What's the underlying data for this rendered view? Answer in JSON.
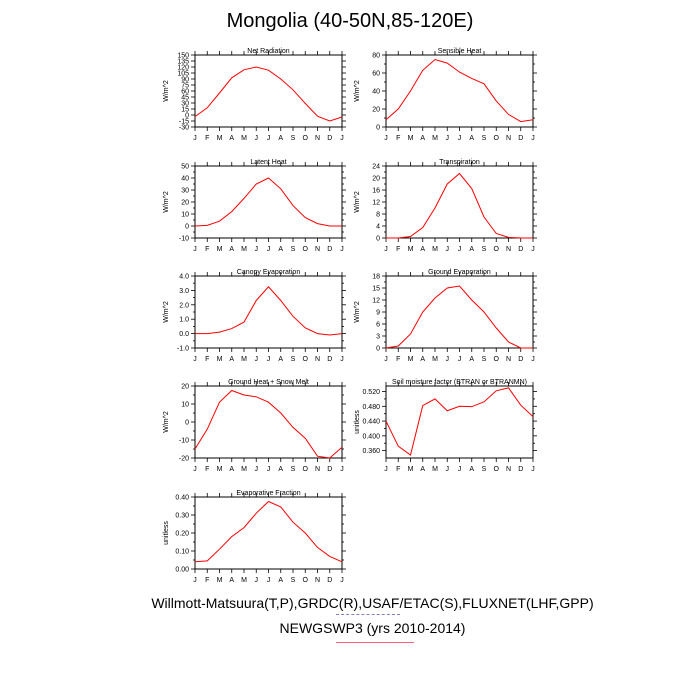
{
  "figure": {
    "title": "Mongolia (40-50N,85-120E)",
    "footer_line1": "Willmott-Matsuura(T,P),GRDC(R),USAF/ETAC(S),FLUXNET(LHF,GPP)",
    "footer_line2": "NEWGSWP3 (yrs 2010-2014)",
    "line_color": "#ff0000",
    "legend_dash_color": "#8080c0",
    "legend_line_color": "#ff6080"
  },
  "chart_data": [
    {
      "type": "line",
      "title": "Net Radiation",
      "ylabel": "W/m^2",
      "xlabel": "",
      "categories": [
        "J",
        "F",
        "M",
        "A",
        "M",
        "J",
        "J",
        "A",
        "S",
        "O",
        "N",
        "D",
        "J"
      ],
      "values": [
        -4,
        18,
        55,
        93,
        113,
        120,
        112,
        90,
        63,
        29,
        -3,
        -15,
        -5
      ],
      "ylim": [
        -30,
        150
      ],
      "yticks": [
        -30,
        -15,
        0,
        15,
        30,
        45,
        60,
        75,
        90,
        105,
        120,
        135,
        150
      ],
      "ytick_labels": [
        "-30",
        "-15",
        "0",
        "15",
        "30",
        "45",
        "60",
        "75",
        "90",
        "105",
        "120",
        "135",
        "150"
      ]
    },
    {
      "type": "line",
      "title": "Sensible Heat",
      "ylabel": "W/m^2",
      "xlabel": "",
      "categories": [
        "J",
        "F",
        "M",
        "A",
        "M",
        "J",
        "J",
        "A",
        "S",
        "O",
        "N",
        "D",
        "J"
      ],
      "values": [
        8,
        20,
        40,
        63,
        75,
        71,
        61,
        54,
        48,
        29,
        14,
        6,
        8
      ],
      "ylim": [
        0,
        80
      ],
      "yticks": [
        0,
        10,
        20,
        30,
        40,
        50,
        60,
        70,
        80
      ],
      "ytick_labels": [
        "0",
        "",
        "20",
        "",
        "40",
        "",
        "60",
        "",
        "80"
      ]
    },
    {
      "type": "line",
      "title": "Latent Heat",
      "ylabel": "W/m^2",
      "xlabel": "",
      "categories": [
        "J",
        "F",
        "M",
        "A",
        "M",
        "J",
        "J",
        "A",
        "S",
        "O",
        "N",
        "D",
        "J"
      ],
      "values": [
        0,
        0.5,
        4,
        12,
        23,
        35,
        40,
        31,
        17,
        7,
        2,
        0,
        0
      ],
      "ylim": [
        -10,
        50
      ],
      "yticks": [
        -10,
        -5,
        0,
        5,
        10,
        15,
        20,
        25,
        30,
        35,
        40,
        45,
        50
      ],
      "ytick_labels": [
        "-10",
        "",
        "0",
        "",
        "10",
        "",
        "20",
        "",
        "30",
        "",
        "40",
        "",
        "50"
      ]
    },
    {
      "type": "line",
      "title": "Transpiration",
      "ylabel": "W/m^2",
      "xlabel": "",
      "categories": [
        "J",
        "F",
        "M",
        "A",
        "M",
        "J",
        "J",
        "A",
        "S",
        "O",
        "N",
        "D",
        "J"
      ],
      "values": [
        0,
        0,
        0.5,
        3.5,
        10,
        18,
        21.5,
        16.5,
        7,
        1.5,
        0.2,
        0,
        0
      ],
      "ylim": [
        0,
        24
      ],
      "yticks": [
        0,
        2,
        4,
        6,
        8,
        10,
        12,
        14,
        16,
        18,
        20,
        22,
        24
      ],
      "ytick_labels": [
        "0",
        "",
        "4",
        "",
        "8",
        "",
        "12",
        "",
        "16",
        "",
        "20",
        "",
        "24"
      ]
    },
    {
      "type": "line",
      "title": "Canopy Evaporation",
      "ylabel": "W/m^2",
      "xlabel": "",
      "categories": [
        "J",
        "F",
        "M",
        "A",
        "M",
        "J",
        "J",
        "A",
        "S",
        "O",
        "N",
        "D",
        "J"
      ],
      "values": [
        0,
        0,
        0.1,
        0.35,
        0.8,
        2.3,
        3.25,
        2.3,
        1.2,
        0.4,
        0,
        -0.1,
        0
      ],
      "ylim": [
        -1.0,
        4.0
      ],
      "yticks": [
        -1.0,
        -0.5,
        0.0,
        0.5,
        1.0,
        1.5,
        2.0,
        2.5,
        3.0,
        3.5,
        4.0
      ],
      "ytick_labels": [
        "-1.0",
        "",
        "0.0",
        "",
        "1.0",
        "",
        "2.0",
        "",
        "3.0",
        "",
        "4.0"
      ]
    },
    {
      "type": "line",
      "title": "Ground Evaporation",
      "ylabel": "W/m^2",
      "xlabel": "",
      "categories": [
        "J",
        "F",
        "M",
        "A",
        "M",
        "J",
        "J",
        "A",
        "S",
        "O",
        "N",
        "D",
        "J"
      ],
      "values": [
        0,
        0.5,
        3.5,
        9,
        12.5,
        15,
        15.5,
        12,
        9,
        5,
        1.5,
        0,
        0
      ],
      "ylim": [
        0,
        18
      ],
      "yticks": [
        0,
        1.5,
        3,
        4.5,
        6,
        7.5,
        9,
        10.5,
        12,
        13.5,
        15,
        16.5,
        18
      ],
      "ytick_labels": [
        "0",
        "",
        "3",
        "",
        "6",
        "",
        "9",
        "",
        "12",
        "",
        "15",
        "",
        "18"
      ]
    },
    {
      "type": "line",
      "title": "Ground Heat + Snow Melt",
      "ylabel": "W/m^2",
      "xlabel": "",
      "categories": [
        "J",
        "F",
        "M",
        "A",
        "M",
        "J",
        "J",
        "A",
        "S",
        "O",
        "N",
        "D",
        "J"
      ],
      "values": [
        -15,
        -4,
        11,
        17.5,
        15,
        14,
        11,
        5,
        -3,
        -9,
        -19,
        -20,
        -14
      ],
      "ylim": [
        -20,
        20
      ],
      "yticks": [
        -20,
        -15,
        -10,
        -5,
        0,
        5,
        10,
        15,
        20
      ],
      "ytick_labels": [
        "-20",
        "",
        "-10",
        "",
        "0",
        "",
        "10",
        "",
        "20"
      ]
    },
    {
      "type": "line",
      "title": "Soil moisture factor (BTRAN or BTRANMN)",
      "ylabel": "unitless",
      "xlabel": "",
      "categories": [
        "J",
        "F",
        "M",
        "A",
        "M",
        "J",
        "J",
        "A",
        "S",
        "O",
        "N",
        "D",
        "J"
      ],
      "values": [
        0.44,
        0.372,
        0.348,
        0.482,
        0.5,
        0.468,
        0.48,
        0.479,
        0.492,
        0.522,
        0.53,
        0.483,
        0.452
      ],
      "ylim": [
        0.34,
        0.535
      ],
      "yticks": [
        0.36,
        0.38,
        0.4,
        0.42,
        0.44,
        0.46,
        0.48,
        0.5,
        0.52
      ],
      "ytick_labels": [
        "0.360",
        "",
        "0.400",
        "",
        "0.440",
        "",
        "0.480",
        "",
        "0.520"
      ]
    },
    {
      "type": "line",
      "title": "Evaporative Fraction",
      "ylabel": "unitless",
      "xlabel": "",
      "categories": [
        "J",
        "F",
        "M",
        "A",
        "M",
        "J",
        "J",
        "A",
        "S",
        "O",
        "N",
        "D",
        "J"
      ],
      "values": [
        0.04,
        0.045,
        0.11,
        0.18,
        0.23,
        0.31,
        0.375,
        0.345,
        0.26,
        0.2,
        0.12,
        0.07,
        0.04
      ],
      "ylim": [
        0.0,
        0.4
      ],
      "yticks": [
        0.0,
        0.05,
        0.1,
        0.15,
        0.2,
        0.25,
        0.3,
        0.35,
        0.4
      ],
      "ytick_labels": [
        "0.00",
        "",
        "0.10",
        "",
        "0.20",
        "",
        "0.30",
        "",
        "0.40"
      ]
    }
  ]
}
